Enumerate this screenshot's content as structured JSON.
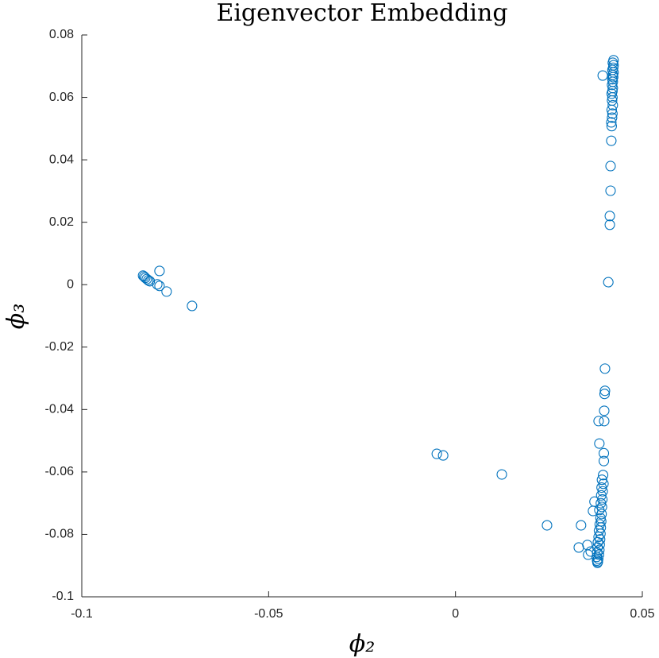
{
  "chart_data": {
    "type": "scatter",
    "title": "Eigenvector Embedding",
    "x_label": "ϕ₂",
    "y_label": "ϕ₃",
    "color": "#0072bd",
    "xlim": [
      -0.1,
      0.05
    ],
    "xticks": [
      -0.1,
      -0.05,
      0,
      0.05
    ],
    "ylim": [
      -0.1,
      0.08
    ],
    "yticks": [
      0.08,
      0.06,
      0.04,
      0.02,
      0,
      -0.02,
      -0.04,
      -0.06,
      -0.08,
      -0.1
    ],
    "x": [
      -0.0836,
      -0.0833,
      -0.083,
      -0.0826,
      -0.0822,
      -0.0818,
      -0.0792,
      -0.0798,
      -0.0792,
      -0.0773,
      -0.0705,
      -0.005,
      -0.0033,
      0.0124,
      0.0245,
      0.0336,
      0.033,
      0.0353,
      0.0355,
      0.0362,
      0.0368,
      0.0372,
      0.0423,
      0.0421,
      0.0423,
      0.0422,
      0.042,
      0.0423,
      0.0421,
      0.0422,
      0.042,
      0.0421,
      0.0419,
      0.0421,
      0.042,
      0.0418,
      0.042,
      0.0419,
      0.0421,
      0.0418,
      0.042,
      0.0419,
      0.0417,
      0.0418,
      0.0394,
      0.0417,
      0.0415,
      0.0415,
      0.0413,
      0.0413,
      0.0409,
      0.04,
      0.04,
      0.0399,
      0.0398,
      0.0383,
      0.0398,
      0.0385,
      0.0397,
      0.0397,
      0.0395,
      0.0392,
      0.0396,
      0.0391,
      0.0394,
      0.039,
      0.0393,
      0.0389,
      0.0392,
      0.0385,
      0.0391,
      0.0388,
      0.039,
      0.0386,
      0.0389,
      0.0384,
      0.0388,
      0.0383,
      0.0387,
      0.0381,
      0.0386,
      0.038,
      0.0385,
      0.0379,
      0.0384,
      0.0378,
      0.0382,
      0.0379,
      0.0381,
      0.038
    ],
    "values": [
      0.0029,
      0.0026,
      0.0022,
      0.0018,
      0.0014,
      0.0011,
      0.0044,
      0.0001,
      -0.0004,
      -0.0022,
      -0.0068,
      -0.0542,
      -0.0547,
      -0.0608,
      -0.0771,
      -0.0771,
      -0.0842,
      -0.0834,
      -0.0865,
      -0.0855,
      -0.0725,
      -0.0695,
      0.0719,
      0.0711,
      0.0703,
      0.0695,
      0.0688,
      0.068,
      0.0672,
      0.0665,
      0.0658,
      0.065,
      0.064,
      0.063,
      0.062,
      0.0612,
      0.06,
      0.059,
      0.0575,
      0.056,
      0.0548,
      0.0535,
      0.052,
      0.0508,
      0.067,
      0.0461,
      0.038,
      0.0301,
      0.022,
      0.0192,
      0.0008,
      -0.0269,
      -0.034,
      -0.035,
      -0.0404,
      -0.0437,
      -0.0437,
      -0.0509,
      -0.054,
      -0.0565,
      -0.061,
      -0.0625,
      -0.0638,
      -0.065,
      -0.0662,
      -0.0675,
      -0.0688,
      -0.07,
      -0.0712,
      -0.0722,
      -0.0735,
      -0.0748,
      -0.0758,
      -0.0768,
      -0.0778,
      -0.0788,
      -0.0798,
      -0.0808,
      -0.0816,
      -0.0825,
      -0.0833,
      -0.0842,
      -0.085,
      -0.0858,
      -0.0865,
      -0.0872,
      -0.0878,
      -0.0884,
      -0.0888,
      -0.0891
    ]
  }
}
